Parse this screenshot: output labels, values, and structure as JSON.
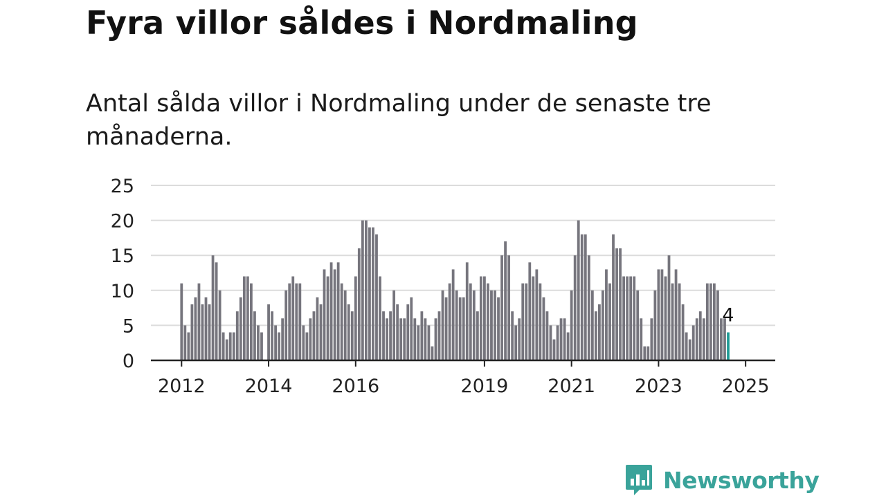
{
  "header": {
    "title": "Fyra villor såldes i Nordmaling",
    "subtitle": "Antal sålda villor i Nordmaling under de senaste tre månaderna."
  },
  "brand": {
    "name": "Newsworthy",
    "color": "#3aa39a"
  },
  "colors": {
    "bar": "#76757d",
    "highlight": "#1f9b95",
    "grid": "#dcdcdc",
    "axis": "#222222"
  },
  "chart_data": {
    "type": "bar",
    "title": "Fyra villor såldes i Nordmaling",
    "xlabel": "",
    "ylabel": "",
    "ylim": [
      0,
      25
    ],
    "yticks": [
      "0",
      "5",
      "10",
      "15",
      "20",
      "25"
    ],
    "x_start": "2011-12",
    "x_end": "2025-01",
    "values": [
      11,
      5,
      4,
      8,
      9,
      11,
      8,
      9,
      8,
      15,
      14,
      10,
      4,
      3,
      4,
      4,
      7,
      9,
      12,
      12,
      11,
      7,
      5,
      4,
      0,
      8,
      7,
      5,
      4,
      6,
      10,
      11,
      12,
      11,
      11,
      5,
      4,
      6,
      7,
      9,
      8,
      13,
      12,
      14,
      13,
      14,
      11,
      10,
      8,
      7,
      12,
      16,
      20,
      20,
      19,
      19,
      18,
      12,
      7,
      6,
      7,
      10,
      8,
      6,
      6,
      8,
      9,
      6,
      5,
      7,
      6,
      5,
      2,
      6,
      7,
      10,
      9,
      11,
      13,
      10,
      9,
      9,
      14,
      11,
      10,
      7,
      12,
      12,
      11,
      10,
      10,
      9,
      15,
      17,
      15,
      7,
      5,
      6,
      11,
      11,
      14,
      12,
      13,
      11,
      9,
      7,
      5,
      3,
      5,
      6,
      6,
      4,
      10,
      15,
      20,
      18,
      18,
      15,
      10,
      7,
      8,
      10,
      13,
      11,
      18,
      16,
      16,
      12,
      12,
      12,
      12,
      10,
      6,
      2,
      2,
      6,
      10,
      13,
      13,
      12,
      15,
      11,
      13,
      11,
      8,
      4,
      3,
      5,
      6,
      7,
      6,
      11,
      11,
      11,
      10,
      6,
      6,
      4
    ],
    "highlight_last": true,
    "highlight_label": "4",
    "x_tick_labels": [
      {
        "label": "2012",
        "index": 0
      },
      {
        "label": "2014",
        "index": 25
      },
      {
        "label": "2016",
        "index": 50
      },
      {
        "label": "2019",
        "index": 87
      },
      {
        "label": "2021",
        "index": 112
      },
      {
        "label": "2023",
        "index": 137
      },
      {
        "label": "2025",
        "index": 162
      }
    ]
  }
}
